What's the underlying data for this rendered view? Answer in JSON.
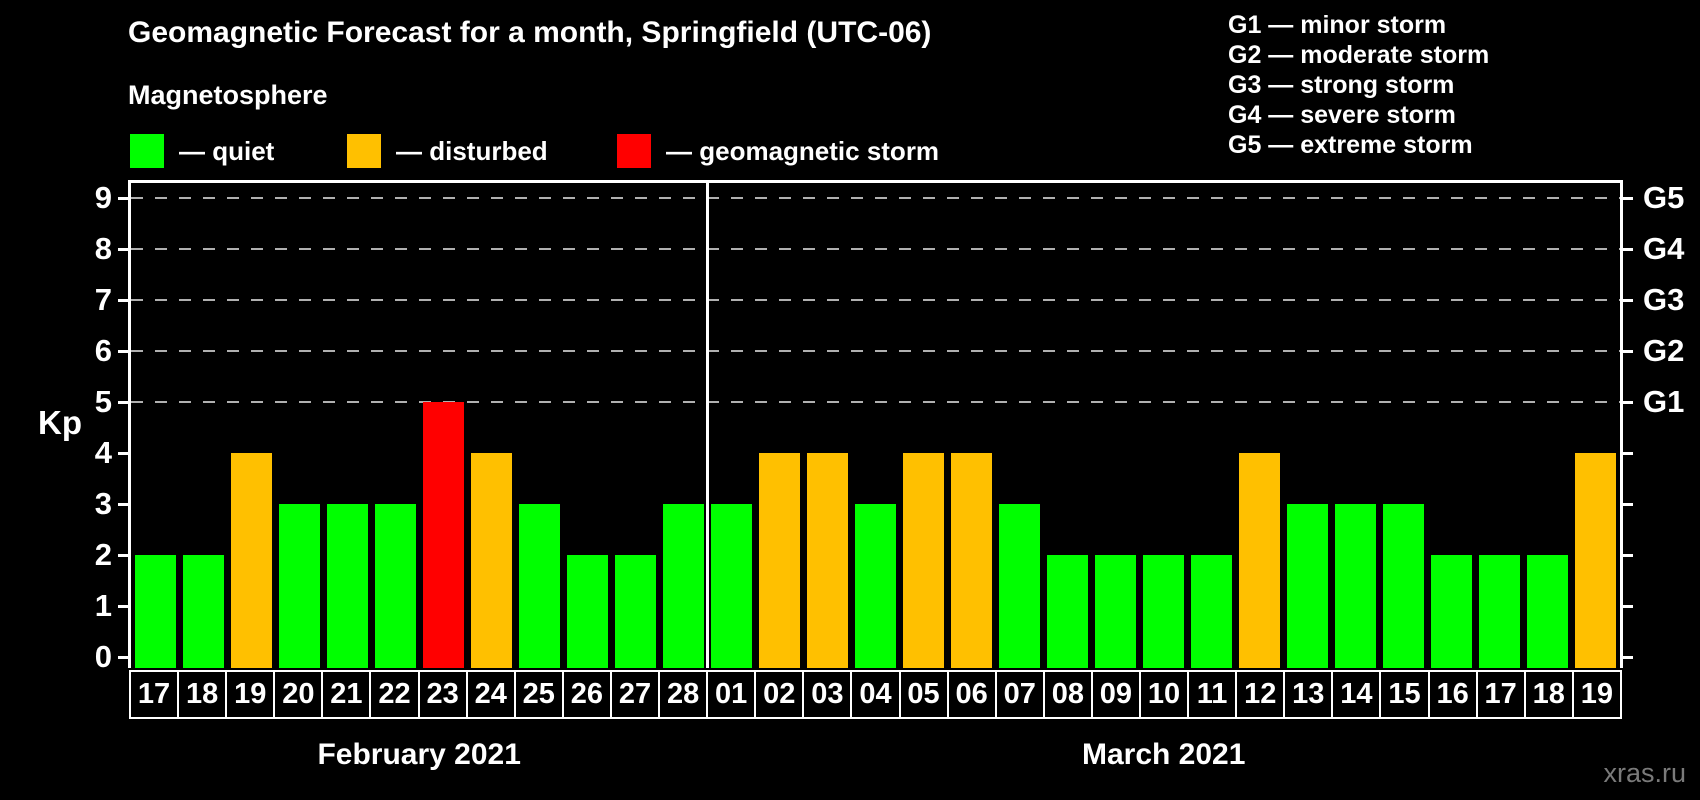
{
  "title": "Geomagnetic Forecast for a month, Springfield (UTC-06)",
  "legend": {
    "heading": "Magnetosphere",
    "items": [
      {
        "key": "quiet",
        "label": "— quiet"
      },
      {
        "key": "disturbed",
        "label": "— disturbed"
      },
      {
        "key": "storm",
        "label": "— geomagnetic storm"
      }
    ]
  },
  "g_scale_legend": [
    "G1 — minor storm",
    "G2 — moderate storm",
    "G3 — strong storm",
    "G4 — severe storm",
    "G5 — extreme storm"
  ],
  "watermark": "xras.ru",
  "colors": {
    "background": "#000000",
    "quiet": "#00ff00",
    "disturbed": "#ffc000",
    "storm": "#ff0000",
    "axis": "#ffffff",
    "grid": "#b0b0b0",
    "watermark": "#7a7a7a"
  },
  "chart_data": {
    "type": "bar",
    "ylabel": "Kp",
    "ylim": [
      0,
      9
    ],
    "yticks": [
      0,
      1,
      2,
      3,
      4,
      5,
      6,
      7,
      8,
      9
    ],
    "grid_levels": [
      5,
      6,
      7,
      8,
      9
    ],
    "right_axis": [
      {
        "kp": 5,
        "label": "G1"
      },
      {
        "kp": 6,
        "label": "G2"
      },
      {
        "kp": 7,
        "label": "G3"
      },
      {
        "kp": 8,
        "label": "G4"
      },
      {
        "kp": 9,
        "label": "G5"
      }
    ],
    "months": [
      {
        "label": "February 2021",
        "days": [
          {
            "day": "17",
            "kp": 2,
            "status": "quiet"
          },
          {
            "day": "18",
            "kp": 2,
            "status": "quiet"
          },
          {
            "day": "19",
            "kp": 4,
            "status": "disturbed"
          },
          {
            "day": "20",
            "kp": 3,
            "status": "quiet"
          },
          {
            "day": "21",
            "kp": 3,
            "status": "quiet"
          },
          {
            "day": "22",
            "kp": 3,
            "status": "quiet"
          },
          {
            "day": "23",
            "kp": 5,
            "status": "storm"
          },
          {
            "day": "24",
            "kp": 4,
            "status": "disturbed"
          },
          {
            "day": "25",
            "kp": 3,
            "status": "quiet"
          },
          {
            "day": "26",
            "kp": 2,
            "status": "quiet"
          },
          {
            "day": "27",
            "kp": 2,
            "status": "quiet"
          },
          {
            "day": "28",
            "kp": 3,
            "status": "quiet"
          }
        ]
      },
      {
        "label": "March 2021",
        "days": [
          {
            "day": "01",
            "kp": 3,
            "status": "quiet"
          },
          {
            "day": "02",
            "kp": 4,
            "status": "disturbed"
          },
          {
            "day": "03",
            "kp": 4,
            "status": "disturbed"
          },
          {
            "day": "04",
            "kp": 3,
            "status": "quiet"
          },
          {
            "day": "05",
            "kp": 4,
            "status": "disturbed"
          },
          {
            "day": "06",
            "kp": 4,
            "status": "disturbed"
          },
          {
            "day": "07",
            "kp": 3,
            "status": "quiet"
          },
          {
            "day": "08",
            "kp": 2,
            "status": "quiet"
          },
          {
            "day": "09",
            "kp": 2,
            "status": "quiet"
          },
          {
            "day": "10",
            "kp": 2,
            "status": "quiet"
          },
          {
            "day": "11",
            "kp": 2,
            "status": "quiet"
          },
          {
            "day": "12",
            "kp": 4,
            "status": "disturbed"
          },
          {
            "day": "13",
            "kp": 3,
            "status": "quiet"
          },
          {
            "day": "14",
            "kp": 3,
            "status": "quiet"
          },
          {
            "day": "15",
            "kp": 3,
            "status": "quiet"
          },
          {
            "day": "16",
            "kp": 2,
            "status": "quiet"
          },
          {
            "day": "17",
            "kp": 2,
            "status": "quiet"
          },
          {
            "day": "18",
            "kp": 2,
            "status": "quiet"
          },
          {
            "day": "19",
            "kp": 4,
            "status": "disturbed"
          }
        ]
      }
    ]
  }
}
